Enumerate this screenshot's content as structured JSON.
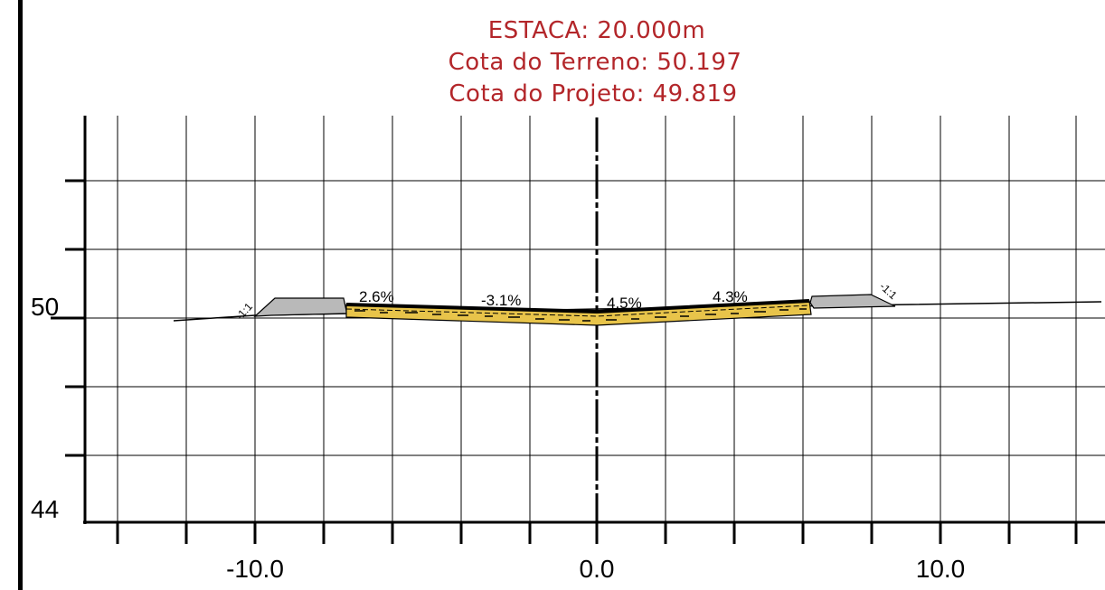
{
  "header": {
    "station": "ESTACA: 20.000m",
    "terrain_elevation": "Cota do Terreno:  50.197",
    "project_elevation": "Cota do Projeto: 49.819"
  },
  "axes": {
    "x_ticks": [
      "-10.0",
      "0.0",
      "10.0"
    ],
    "y_ticks": [
      "50",
      "44"
    ]
  },
  "slopes": [
    "2.6%",
    "-3.1%",
    "4.5%",
    "4.3%"
  ],
  "slope_ratios": {
    "left": "-1:1",
    "right": "-1:1"
  },
  "colors": {
    "title": "#b3262a",
    "grid": "#000000",
    "embankment": "#b9b9b9",
    "aggregate": "#e8c44a"
  }
}
